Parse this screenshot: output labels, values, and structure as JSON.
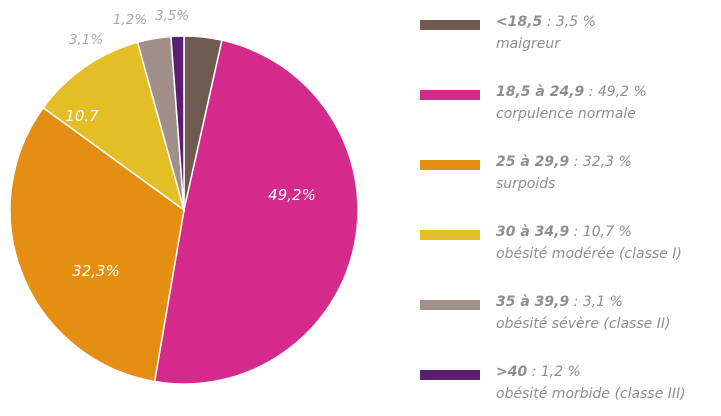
{
  "chart_data": {
    "type": "pie",
    "slices": [
      {
        "value": 3.5,
        "color": "#6e5a4e",
        "outer_label": "3,5%"
      },
      {
        "value": 49.2,
        "color": "#d42a8c",
        "inner_label": "49,2%"
      },
      {
        "value": 32.3,
        "color": "#e58f12",
        "inner_label": "32,3%"
      },
      {
        "value": 10.7,
        "color": "#e3be25",
        "inner_label": "10.7"
      },
      {
        "value": 3.1,
        "color": "#a09089",
        "outer_label": "3,1%"
      },
      {
        "value": 1.2,
        "color": "#5a1f70",
        "outer_label": "1,2%"
      }
    ]
  },
  "legend": [
    {
      "range": "<18,5",
      "value": " : 3,5 %",
      "desc": "maigreur",
      "color": "#6e5a4e"
    },
    {
      "range": "18,5 à 24,9",
      "value": " : 49,2 %",
      "desc": "corpulence normale",
      "color": "#d42a8c"
    },
    {
      "range": "25 à 29,9",
      "value": " : 32,3 %",
      "desc": "surpoids",
      "color": "#e58f12"
    },
    {
      "range": "30 à 34,9",
      "value": " : 10,7  %",
      "desc": "obésité modérée (classe I)",
      "color": "#e3be25"
    },
    {
      "range": "35 à 39,9",
      "value": " : 3,1 %",
      "desc": "obésité sévère (classe II)",
      "color": "#a09089"
    },
    {
      "range": ">40",
      "value": " : 1,2 %",
      "desc": "obésité morbide (classe III)",
      "color": "#5a1f70"
    }
  ]
}
